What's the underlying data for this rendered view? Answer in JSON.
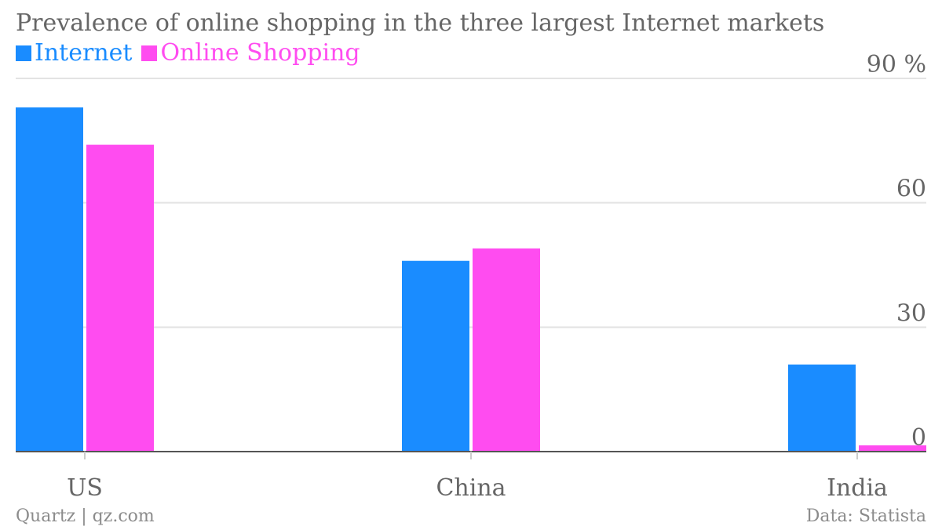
{
  "chart_data": {
    "type": "bar",
    "title": "Prevalence of online shopping in the three largest Internet markets",
    "categories": [
      "US",
      "China",
      "India"
    ],
    "series": [
      {
        "name": "Internet",
        "values": [
          83,
          46,
          21
        ],
        "color": "#1a8cff"
      },
      {
        "name": "Online Shopping",
        "values": [
          74,
          49,
          1.5
        ],
        "color": "#ff4cf0"
      }
    ],
    "ylim": [
      0,
      90
    ],
    "yticks": [
      {
        "value": 0,
        "label": "0"
      },
      {
        "value": 30,
        "label": "30"
      },
      {
        "value": 60,
        "label": "60"
      },
      {
        "value": 90,
        "label": "90 %"
      }
    ],
    "xlabel": "",
    "ylabel": "",
    "grid": true,
    "legend": "top-left"
  },
  "footer": {
    "source": "Quartz | qz.com",
    "credit": "Data: Statista"
  }
}
